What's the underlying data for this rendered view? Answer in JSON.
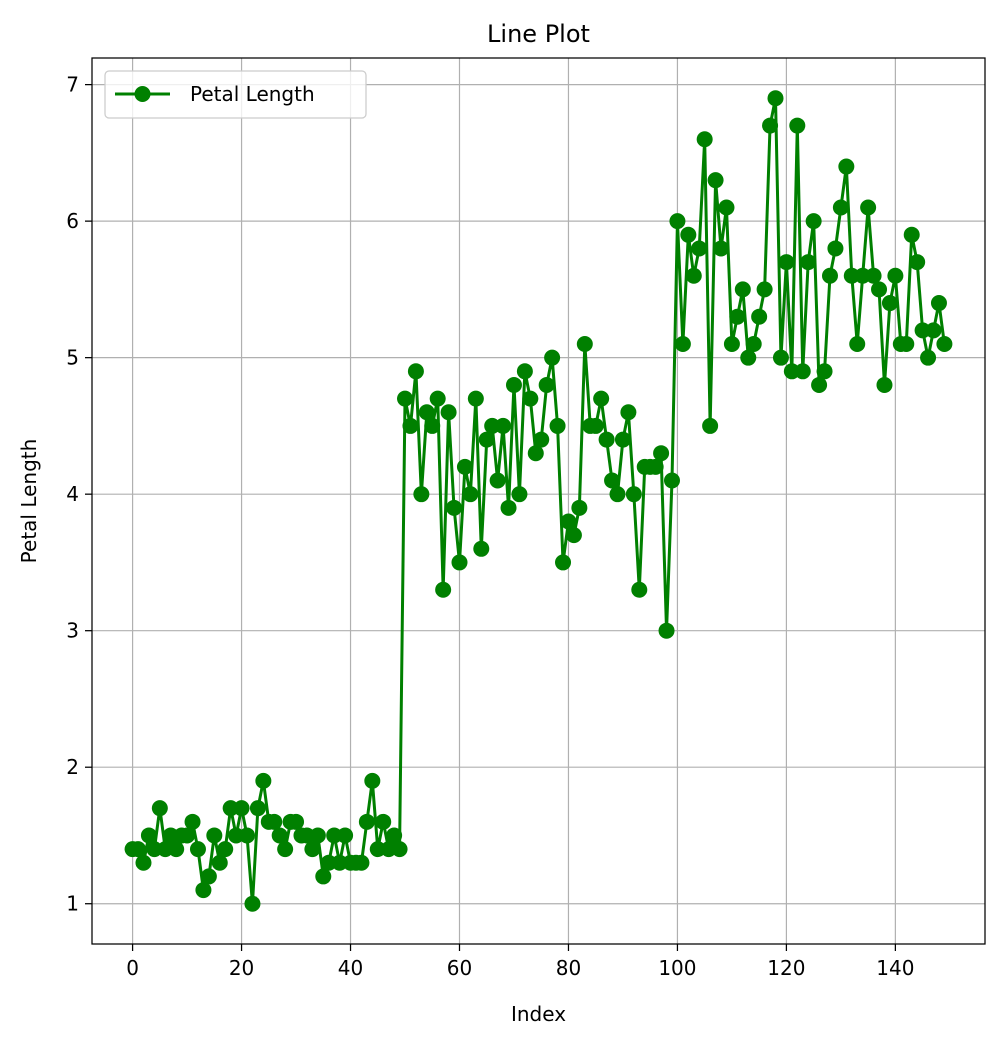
{
  "chart_data": {
    "type": "line",
    "title": "Line Plot",
    "xlabel": "Index",
    "ylabel": "Petal Length",
    "xlim": [
      -7.45,
      156.45
    ],
    "ylim": [
      0.705,
      7.195
    ],
    "xticks": [
      0,
      20,
      40,
      60,
      80,
      100,
      120,
      140
    ],
    "yticks": [
      1,
      2,
      3,
      4,
      5,
      6,
      7
    ],
    "grid": true,
    "legend_position": "top-left",
    "colors": {
      "series": "#008000",
      "grid": "#b0b0b0",
      "axes": "#000000"
    },
    "series": [
      {
        "name": "Petal Length",
        "marker": "circle",
        "x": [
          0,
          1,
          2,
          3,
          4,
          5,
          6,
          7,
          8,
          9,
          10,
          11,
          12,
          13,
          14,
          15,
          16,
          17,
          18,
          19,
          20,
          21,
          22,
          23,
          24,
          25,
          26,
          27,
          28,
          29,
          30,
          31,
          32,
          33,
          34,
          35,
          36,
          37,
          38,
          39,
          40,
          41,
          42,
          43,
          44,
          45,
          46,
          47,
          48,
          49,
          50,
          51,
          52,
          53,
          54,
          55,
          56,
          57,
          58,
          59,
          60,
          61,
          62,
          63,
          64,
          65,
          66,
          67,
          68,
          69,
          70,
          71,
          72,
          73,
          74,
          75,
          76,
          77,
          78,
          79,
          80,
          81,
          82,
          83,
          84,
          85,
          86,
          87,
          88,
          89,
          90,
          91,
          92,
          93,
          94,
          95,
          96,
          97,
          98,
          99,
          100,
          101,
          102,
          103,
          104,
          105,
          106,
          107,
          108,
          109,
          110,
          111,
          112,
          113,
          114,
          115,
          116,
          117,
          118,
          119,
          120,
          121,
          122,
          123,
          124,
          125,
          126,
          127,
          128,
          129,
          130,
          131,
          132,
          133,
          134,
          135,
          136,
          137,
          138,
          139,
          140,
          141,
          142,
          143,
          144,
          145,
          146,
          147,
          148,
          149
        ],
        "values": [
          1.4,
          1.4,
          1.3,
          1.5,
          1.4,
          1.7,
          1.4,
          1.5,
          1.4,
          1.5,
          1.5,
          1.6,
          1.4,
          1.1,
          1.2,
          1.5,
          1.3,
          1.4,
          1.7,
          1.5,
          1.7,
          1.5,
          1.0,
          1.7,
          1.9,
          1.6,
          1.6,
          1.5,
          1.4,
          1.6,
          1.6,
          1.5,
          1.5,
          1.4,
          1.5,
          1.2,
          1.3,
          1.5,
          1.3,
          1.5,
          1.3,
          1.3,
          1.3,
          1.6,
          1.9,
          1.4,
          1.6,
          1.4,
          1.5,
          1.4,
          4.7,
          4.5,
          4.9,
          4.0,
          4.6,
          4.5,
          4.7,
          3.3,
          4.6,
          3.9,
          3.5,
          4.2,
          4.0,
          4.7,
          3.6,
          4.4,
          4.5,
          4.1,
          4.5,
          3.9,
          4.8,
          4.0,
          4.9,
          4.7,
          4.3,
          4.4,
          4.8,
          5.0,
          4.5,
          3.5,
          3.8,
          3.7,
          3.9,
          5.1,
          4.5,
          4.5,
          4.7,
          4.4,
          4.1,
          4.0,
          4.4,
          4.6,
          4.0,
          3.3,
          4.2,
          4.2,
          4.2,
          4.3,
          3.0,
          4.1,
          6.0,
          5.1,
          5.9,
          5.6,
          5.8,
          6.6,
          4.5,
          6.3,
          5.8,
          6.1,
          5.1,
          5.3,
          5.5,
          5.0,
          5.1,
          5.3,
          5.5,
          6.7,
          6.9,
          5.0,
          5.7,
          4.9,
          6.7,
          4.9,
          5.7,
          6.0,
          4.8,
          4.9,
          5.6,
          5.8,
          6.1,
          6.4,
          5.6,
          5.1,
          5.6,
          6.1,
          5.6,
          5.5,
          4.8,
          5.4,
          5.6,
          5.1,
          5.1,
          5.9,
          5.7,
          5.2,
          5.0,
          5.2,
          5.4,
          5.1
        ]
      }
    ]
  }
}
